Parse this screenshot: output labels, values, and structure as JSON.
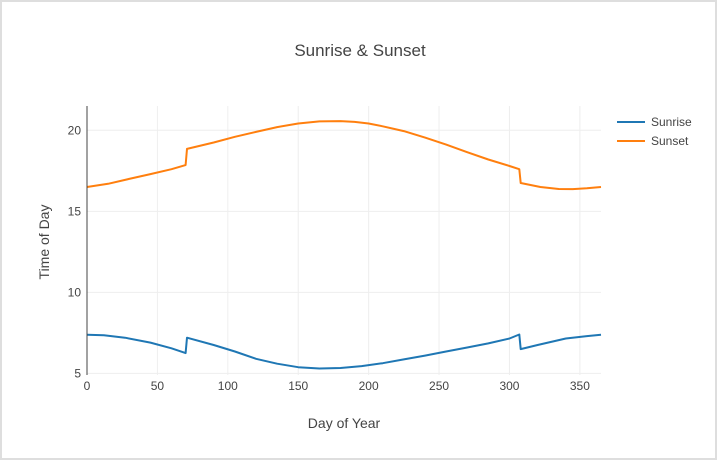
{
  "chart_data": {
    "type": "line",
    "title": "Sunrise & Sunset",
    "xlabel": "Day of Year",
    "ylabel": "Time of Day",
    "xlim": [
      0,
      365
    ],
    "ylim": [
      4.9,
      21.5
    ],
    "xticks": [
      0,
      50,
      100,
      150,
      200,
      250,
      300,
      350
    ],
    "yticks": [
      5,
      10,
      15,
      20
    ],
    "grid": true,
    "legend_position": "top-right",
    "series": [
      {
        "name": "Sunrise",
        "color": "#1f77b4",
        "x": [
          0,
          12,
          27,
          45,
          60,
          70,
          71,
          90,
          105,
          120,
          135,
          150,
          165,
          180,
          195,
          210,
          225,
          240,
          255,
          270,
          285,
          300,
          307,
          308,
          320,
          340,
          355,
          365
        ],
        "y": [
          7.38,
          7.35,
          7.2,
          6.9,
          6.55,
          6.25,
          7.2,
          6.75,
          6.35,
          5.9,
          5.6,
          5.38,
          5.3,
          5.33,
          5.45,
          5.63,
          5.86,
          6.1,
          6.35,
          6.6,
          6.85,
          7.15,
          7.4,
          6.5,
          6.75,
          7.15,
          7.3,
          7.38
        ]
      },
      {
        "name": "Sunset",
        "color": "#ff7f0e",
        "x": [
          0,
          15,
          30,
          45,
          60,
          70,
          71,
          90,
          105,
          120,
          135,
          150,
          165,
          180,
          190,
          200,
          210,
          225,
          240,
          255,
          270,
          285,
          300,
          307,
          308,
          322,
          335,
          345,
          355,
          365
        ],
        "y": [
          16.5,
          16.7,
          17.0,
          17.3,
          17.6,
          17.85,
          18.85,
          19.25,
          19.6,
          19.9,
          20.2,
          20.42,
          20.55,
          20.57,
          20.52,
          20.42,
          20.25,
          19.95,
          19.55,
          19.12,
          18.65,
          18.2,
          17.8,
          17.6,
          16.75,
          16.5,
          16.38,
          16.37,
          16.42,
          16.5
        ]
      }
    ]
  }
}
